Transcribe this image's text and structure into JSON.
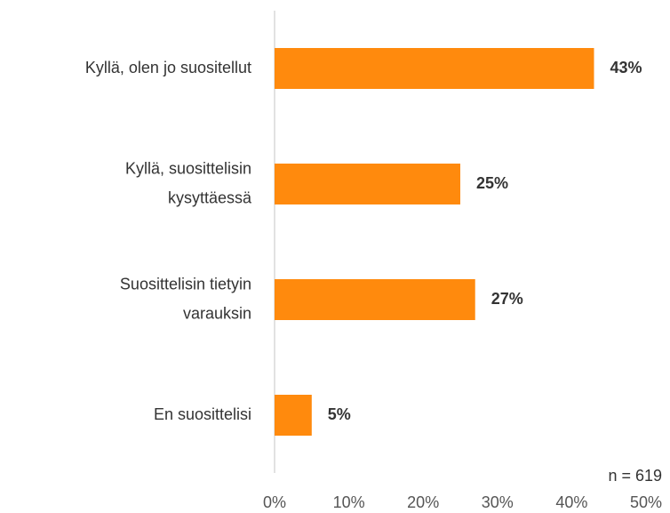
{
  "chart_data": {
    "type": "bar",
    "orientation": "horizontal",
    "categories": [
      "Kyllä, olen jo suositellut",
      "Kyllä,  suosittelisin\nkysyttäessä",
      "Suosittelisin tietyin\nvarauksin",
      "En suosittelisi"
    ],
    "values": [
      43,
      25,
      27,
      5
    ],
    "value_labels": [
      "43%",
      "25%",
      "27%",
      "5%"
    ],
    "color": "#ff8a0d",
    "xlim": [
      0,
      50
    ],
    "xticks": [
      {
        "value": 0,
        "label": "0%"
      },
      {
        "value": 10,
        "label": "10%"
      },
      {
        "value": 20,
        "label": "20%"
      },
      {
        "value": 30,
        "label": "30%"
      },
      {
        "value": 40,
        "label": "40%"
      },
      {
        "value": 50,
        "label": "50%"
      }
    ],
    "grid": false,
    "annotations": [
      "n = 619"
    ]
  }
}
